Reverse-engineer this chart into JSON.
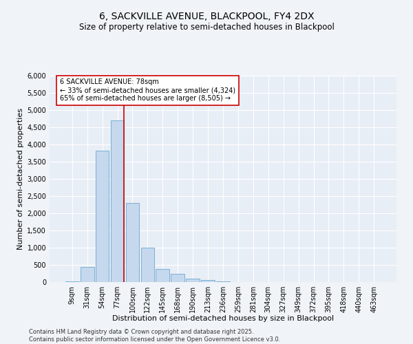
{
  "title": "6, SACKVILLE AVENUE, BLACKPOOL, FY4 2DX",
  "subtitle": "Size of property relative to semi-detached houses in Blackpool",
  "xlabel": "Distribution of semi-detached houses by size in Blackpool",
  "ylabel": "Number of semi-detached properties",
  "categories": [
    "9sqm",
    "31sqm",
    "54sqm",
    "77sqm",
    "100sqm",
    "122sqm",
    "145sqm",
    "168sqm",
    "190sqm",
    "213sqm",
    "236sqm",
    "259sqm",
    "281sqm",
    "304sqm",
    "327sqm",
    "349sqm",
    "372sqm",
    "395sqm",
    "418sqm",
    "440sqm",
    "463sqm"
  ],
  "values": [
    20,
    450,
    3820,
    4700,
    2300,
    1000,
    390,
    240,
    100,
    60,
    20,
    5,
    2,
    1,
    0,
    0,
    0,
    0,
    0,
    0,
    0
  ],
  "bar_color": "#c5d8ed",
  "bar_edge_color": "#7aafd4",
  "property_line_color": "#cc0000",
  "annotation_title": "6 SACKVILLE AVENUE: 78sqm",
  "annotation_line1": "← 33% of semi-detached houses are smaller (4,324)",
  "annotation_line2": "65% of semi-detached houses are larger (8,505) →",
  "annotation_box_edgecolor": "#cc0000",
  "ylim": [
    0,
    6000
  ],
  "yticks": [
    0,
    500,
    1000,
    1500,
    2000,
    2500,
    3000,
    3500,
    4000,
    4500,
    5000,
    5500,
    6000
  ],
  "background_color": "#f0f4f8",
  "plot_bg_color": "#e8eef5",
  "footer": "Contains HM Land Registry data © Crown copyright and database right 2025.\nContains public sector information licensed under the Open Government Licence v3.0.",
  "title_fontsize": 10,
  "subtitle_fontsize": 8.5,
  "axis_label_fontsize": 8,
  "tick_fontsize": 7,
  "annotation_fontsize": 7,
  "footer_fontsize": 6
}
